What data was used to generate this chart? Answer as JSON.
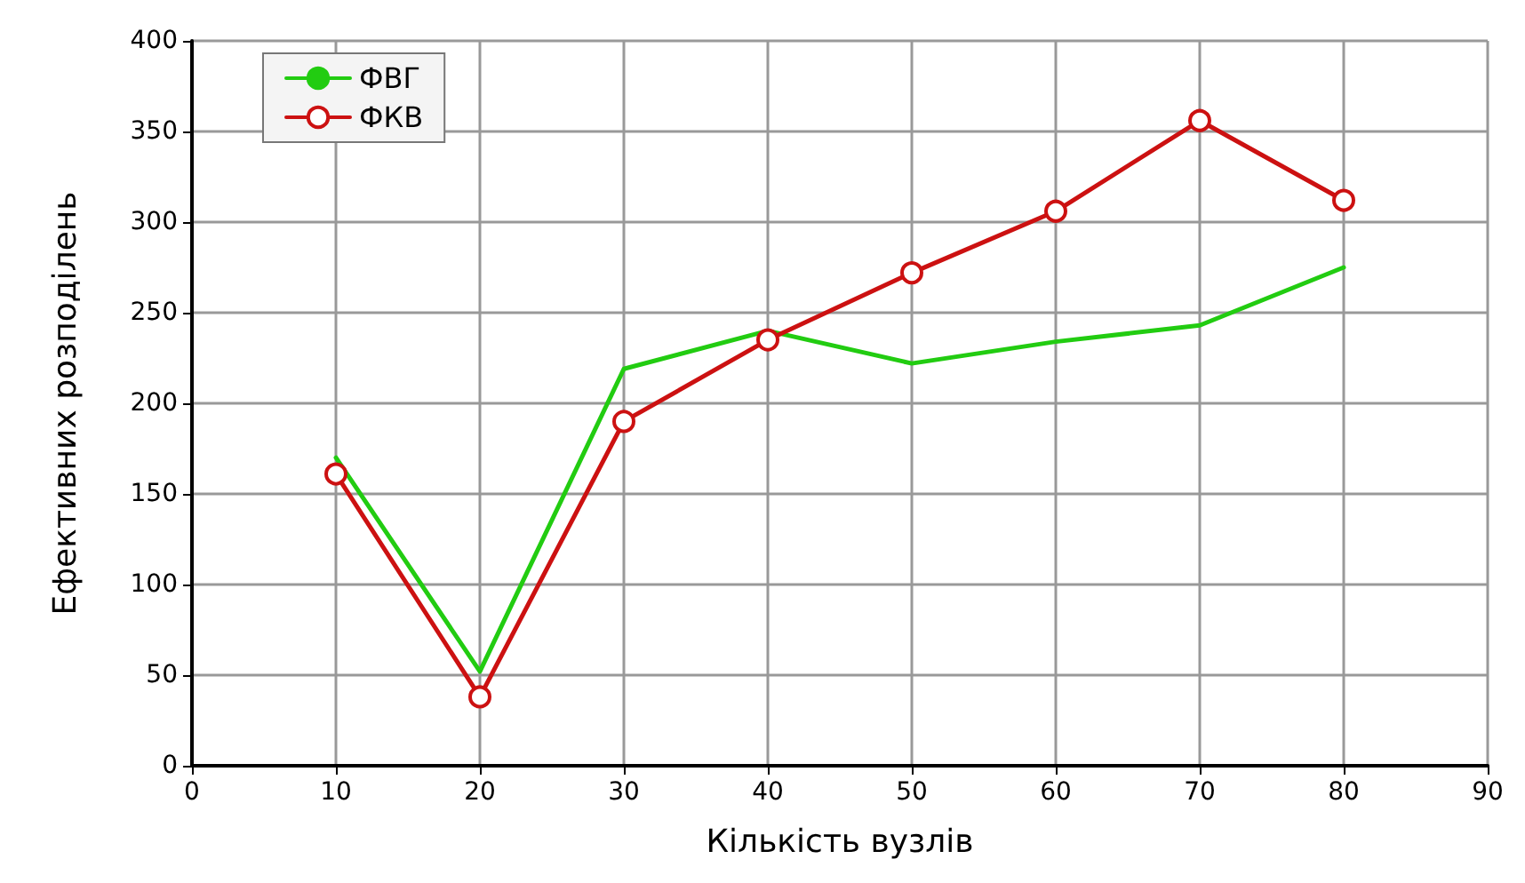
{
  "chart_data": {
    "type": "line",
    "xlabel": "Кількість вузлів",
    "ylabel": "Ефективних розподілень",
    "x": [
      10,
      20,
      30,
      40,
      50,
      60,
      70,
      80
    ],
    "series": [
      {
        "name": "ФВГ",
        "color": "#22cc11",
        "marker": "none",
        "values": [
          170,
          52,
          219,
          240,
          222,
          234,
          243,
          275
        ]
      },
      {
        "name": "ФКВ",
        "color": "#cc1111",
        "marker": "circle",
        "values": [
          161,
          38,
          190,
          235,
          272,
          306,
          356,
          312
        ]
      }
    ],
    "xlim": [
      0,
      90
    ],
    "xticks": [
      0,
      10,
      20,
      30,
      40,
      50,
      60,
      70,
      80,
      90
    ],
    "ylim": [
      0,
      400
    ],
    "yticks": [
      0,
      50,
      100,
      150,
      200,
      250,
      300,
      350,
      400
    ],
    "grid": true,
    "legend": "top left",
    "line_style": "solid"
  }
}
